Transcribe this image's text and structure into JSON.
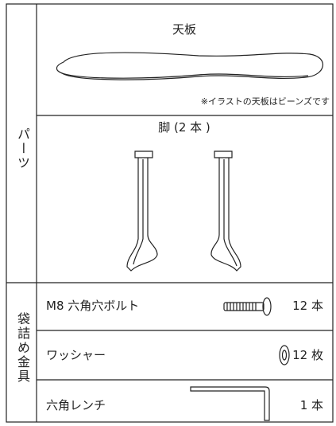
{
  "parts": {
    "label": "パーツ",
    "items": [
      {
        "title": "天板",
        "note": "※イラストの天板はビーンズです"
      },
      {
        "title": "脚 (2 本 )"
      }
    ]
  },
  "hardware": {
    "label": "袋詰め金具",
    "rows": [
      {
        "name": "M8 六角穴ボルト",
        "quantity": "12 本"
      },
      {
        "name": "ワッシャー",
        "quantity": "12 枚"
      },
      {
        "name": "六角レンチ",
        "quantity": "1 本"
      }
    ]
  }
}
